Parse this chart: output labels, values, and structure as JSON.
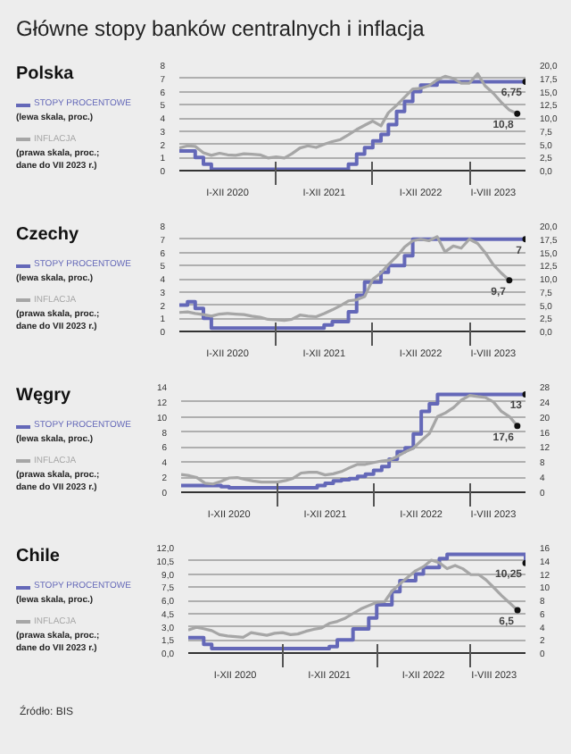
{
  "chart_data": [
    {
      "type": "other",
      "title": "Główne stopy banków centralnych i inflacja"
    },
    {
      "type": "line",
      "title": "Polska",
      "legend": "left",
      "grid": "y",
      "marker": "none",
      "xlim": [
        "2020-01",
        "2023-08"
      ],
      "xticks": [
        {
          "value": "2020-07",
          "label": "I-XII 2020"
        },
        {
          "value": "2021-07",
          "label": "I-XII 2021"
        },
        {
          "value": "2022-07",
          "label": "I-XII 2022"
        },
        {
          "value": "2023-04",
          "label": "I-VIII 2023"
        },
        {
          "value": "2021-01",
          "label": null
        },
        {
          "value": "2022-01",
          "label": null
        },
        {
          "value": "2023-01",
          "label": null
        }
      ],
      "ylim": [
        0,
        8
      ],
      "yticks": [
        0,
        1,
        2,
        3,
        4,
        5,
        6,
        7,
        8
      ],
      "y2lim": [
        0,
        20
      ],
      "y2ticks": [
        {
          "value": 0,
          "label": "0,0"
        },
        {
          "value": 2.5,
          "label": "2,5"
        },
        {
          "value": 5,
          "label": "5,0"
        },
        {
          "value": 7.5,
          "label": "7,5"
        },
        {
          "value": 10,
          "label": "10,0"
        },
        {
          "value": 12.5,
          "label": "12,5"
        },
        {
          "value": 15,
          "label": "15,0"
        },
        {
          "value": 17.5,
          "label": "17,5"
        },
        {
          "value": 20,
          "label": "20,0"
        }
      ],
      "annotations": [
        "(lewa skala, proc.)",
        "(prawa skala, proc.; dane do VII 2023 r.)"
      ],
      "series": [
        {
          "name": "STOPY PROCENTOWE",
          "type": "step",
          "color": "#6468b8",
          "x": [
            "2020-01",
            "2020-03",
            "2020-04",
            "2020-05",
            "2021-10",
            "2021-11",
            "2021-12",
            "2022-01",
            "2022-02",
            "2022-03",
            "2022-04",
            "2022-05",
            "2022-06",
            "2022-07",
            "2022-09",
            "2023-08"
          ],
          "values": [
            1.5,
            1.0,
            0.5,
            0.1,
            0.5,
            1.25,
            1.75,
            2.25,
            2.75,
            3.5,
            4.5,
            5.25,
            6.0,
            6.5,
            6.75,
            6.75
          ],
          "value_labels": [
            null,
            null,
            null,
            null,
            null,
            null,
            null,
            null,
            null,
            null,
            null,
            null,
            null,
            null,
            null,
            "6,75"
          ]
        },
        {
          "name": "INFLACJA",
          "type": "line",
          "axis": "y2",
          "color": "#a6a6a6",
          "x": [
            "2020-01",
            "2020-02",
            "2020-03",
            "2020-04",
            "2020-05",
            "2020-06",
            "2020-07",
            "2020-08",
            "2020-09",
            "2020-10",
            "2020-11",
            "2020-12",
            "2021-01",
            "2021-02",
            "2021-03",
            "2021-04",
            "2021-05",
            "2021-06",
            "2021-07",
            "2021-08",
            "2021-09",
            "2021-10",
            "2021-11",
            "2021-12",
            "2022-01",
            "2022-02",
            "2022-03",
            "2022-04",
            "2022-05",
            "2022-06",
            "2022-07",
            "2022-08",
            "2022-09",
            "2022-10",
            "2022-11",
            "2022-12",
            "2023-01",
            "2023-02",
            "2023-03",
            "2023-04",
            "2023-05",
            "2023-06",
            "2023-07"
          ],
          "values": [
            4.3,
            4.7,
            4.6,
            3.4,
            2.9,
            3.3,
            3.0,
            2.9,
            3.2,
            3.1,
            3.0,
            2.4,
            2.6,
            2.4,
            3.2,
            4.3,
            4.7,
            4.4,
            5.0,
            5.5,
            5.9,
            6.8,
            7.8,
            8.6,
            9.4,
            8.5,
            11.0,
            12.4,
            13.9,
            15.5,
            15.6,
            16.1,
            17.2,
            17.9,
            17.5,
            16.6,
            16.6,
            18.4,
            16.1,
            14.7,
            13.0,
            11.5,
            10.8
          ],
          "value_labels": [
            null,
            null,
            null,
            null,
            null,
            null,
            null,
            null,
            null,
            null,
            null,
            null,
            null,
            null,
            null,
            null,
            null,
            null,
            null,
            null,
            null,
            null,
            null,
            null,
            null,
            null,
            null,
            null,
            null,
            null,
            null,
            null,
            null,
            null,
            null,
            null,
            null,
            null,
            null,
            null,
            null,
            null,
            "10,8"
          ]
        }
      ]
    },
    {
      "type": "line",
      "title": "Czechy",
      "legend": "left",
      "grid": "y",
      "marker": "none",
      "xlim": [
        "2020-01",
        "2023-08"
      ],
      "xticks": [
        {
          "value": "2020-07",
          "label": "I-XII 2020"
        },
        {
          "value": "2021-07",
          "label": "I-XII 2021"
        },
        {
          "value": "2022-07",
          "label": "I-XII 2022"
        },
        {
          "value": "2023-04",
          "label": "I-VIII 2023"
        },
        {
          "value": "2021-01",
          "label": null
        },
        {
          "value": "2022-01",
          "label": null
        },
        {
          "value": "2023-01",
          "label": null
        }
      ],
      "ylim": [
        0,
        8
      ],
      "yticks": [
        0,
        1,
        2,
        3,
        4,
        5,
        6,
        7,
        8
      ],
      "y2lim": [
        0,
        20
      ],
      "y2ticks": [
        {
          "value": 0,
          "label": "0,0"
        },
        {
          "value": 2.5,
          "label": "2,5"
        },
        {
          "value": 5,
          "label": "5,0"
        },
        {
          "value": 7.5,
          "label": "7,5"
        },
        {
          "value": 10,
          "label": "10,0"
        },
        {
          "value": 12.5,
          "label": "12,5"
        },
        {
          "value": 15,
          "label": "15,0"
        },
        {
          "value": 17.5,
          "label": "17,5"
        },
        {
          "value": 20,
          "label": "20,0"
        }
      ],
      "annotations": [
        "(lewa skala, proc.)",
        "(prawa skala, proc.; dane do VII 2023 r.)"
      ],
      "series": [
        {
          "name": "STOPY PROCENTOWE",
          "type": "step",
          "color": "#6468b8",
          "x": [
            "2020-01",
            "2020-02",
            "2020-03",
            "2020-04",
            "2020-05",
            "2021-07",
            "2021-08",
            "2021-10",
            "2021-11",
            "2021-12",
            "2022-02",
            "2022-03",
            "2022-05",
            "2022-06",
            "2023-08"
          ],
          "values": [
            2.0,
            2.25,
            1.75,
            1.0,
            0.25,
            0.5,
            0.75,
            1.5,
            2.75,
            3.75,
            4.5,
            5.0,
            5.75,
            7.0,
            7.0
          ],
          "value_labels": [
            null,
            null,
            null,
            null,
            null,
            null,
            null,
            null,
            null,
            null,
            null,
            null,
            null,
            null,
            "7"
          ]
        },
        {
          "name": "INFLACJA",
          "type": "line",
          "axis": "y2",
          "color": "#a6a6a6",
          "x": [
            "2020-01",
            "2020-02",
            "2020-03",
            "2020-04",
            "2020-05",
            "2020-06",
            "2020-07",
            "2020-08",
            "2020-09",
            "2020-10",
            "2020-11",
            "2020-12",
            "2021-01",
            "2021-02",
            "2021-03",
            "2021-04",
            "2021-05",
            "2021-06",
            "2021-07",
            "2021-08",
            "2021-09",
            "2021-10",
            "2021-11",
            "2021-12",
            "2022-01",
            "2022-02",
            "2022-03",
            "2022-04",
            "2022-05",
            "2022-06",
            "2022-07",
            "2022-08",
            "2022-09",
            "2022-10",
            "2022-11",
            "2022-12",
            "2023-01",
            "2023-02",
            "2023-03",
            "2023-04",
            "2023-05",
            "2023-06"
          ],
          "values": [
            3.6,
            3.7,
            3.4,
            3.2,
            2.9,
            3.3,
            3.4,
            3.3,
            3.2,
            2.9,
            2.7,
            2.3,
            2.2,
            2.1,
            2.3,
            3.1,
            2.9,
            2.8,
            3.4,
            4.1,
            4.9,
            5.8,
            6.0,
            6.6,
            9.9,
            11.1,
            12.7,
            14.2,
            16.0,
            17.2,
            17.5,
            17.2,
            18.0,
            15.1,
            16.2,
            15.8,
            17.5,
            16.7,
            15.0,
            12.7,
            11.1,
            9.7
          ],
          "value_labels": [
            null,
            null,
            null,
            null,
            null,
            null,
            null,
            null,
            null,
            null,
            null,
            null,
            null,
            null,
            null,
            null,
            null,
            null,
            null,
            null,
            null,
            null,
            null,
            null,
            null,
            null,
            null,
            null,
            null,
            null,
            null,
            null,
            null,
            null,
            null,
            null,
            null,
            null,
            null,
            null,
            null,
            "9,7"
          ]
        }
      ]
    },
    {
      "type": "line",
      "title": "Węgry",
      "legend": "left",
      "grid": "y",
      "marker": "none",
      "xlim": [
        "2020-01",
        "2023-08"
      ],
      "xticks": [
        {
          "value": "2020-07",
          "label": "I-XII 2020"
        },
        {
          "value": "2021-07",
          "label": "I-XII 2021"
        },
        {
          "value": "2022-07",
          "label": "I-XII 2022"
        },
        {
          "value": "2023-04",
          "label": "I-VIII 2023"
        },
        {
          "value": "2021-01",
          "label": null
        },
        {
          "value": "2022-01",
          "label": null
        },
        {
          "value": "2023-01",
          "label": null
        }
      ],
      "ylim": [
        0,
        14
      ],
      "yticks": [
        0,
        2,
        4,
        6,
        8,
        10,
        12,
        14
      ],
      "y2lim": [
        0,
        28
      ],
      "y2ticks": [
        0,
        4,
        8,
        12,
        16,
        20,
        24,
        28
      ],
      "annotations": [
        "(lewa skala, proc.)",
        "(prawa skala, proc.; dane do VII 2023 r.)"
      ],
      "series": [
        {
          "name": "STOPY PROCENTOWE",
          "type": "step",
          "color": "#6468b8",
          "x": [
            "2020-01",
            "2020-06",
            "2020-07",
            "2021-06",
            "2021-07",
            "2021-08",
            "2021-09",
            "2021-10",
            "2021-11",
            "2021-12",
            "2022-01",
            "2022-02",
            "2022-03",
            "2022-04",
            "2022-05",
            "2022-06",
            "2022-07",
            "2022-08",
            "2022-09",
            "2023-08"
          ],
          "values": [
            0.9,
            0.75,
            0.6,
            0.9,
            1.2,
            1.5,
            1.65,
            1.8,
            2.1,
            2.4,
            2.9,
            3.4,
            4.4,
            5.4,
            5.9,
            7.75,
            10.75,
            11.75,
            13.0,
            13.0
          ],
          "value_labels": [
            null,
            null,
            null,
            null,
            null,
            null,
            null,
            null,
            null,
            null,
            null,
            null,
            null,
            null,
            null,
            null,
            null,
            null,
            null,
            "13"
          ]
        },
        {
          "name": "INFLACJA",
          "type": "line",
          "axis": "y2",
          "color": "#a6a6a6",
          "x": [
            "2020-01",
            "2020-02",
            "2020-03",
            "2020-04",
            "2020-05",
            "2020-06",
            "2020-07",
            "2020-08",
            "2020-09",
            "2020-10",
            "2020-11",
            "2020-12",
            "2021-01",
            "2021-02",
            "2021-03",
            "2021-04",
            "2021-05",
            "2021-06",
            "2021-07",
            "2021-08",
            "2021-09",
            "2021-10",
            "2021-11",
            "2021-12",
            "2022-01",
            "2022-02",
            "2022-03",
            "2022-04",
            "2022-05",
            "2022-06",
            "2022-07",
            "2022-08",
            "2022-09",
            "2022-10",
            "2022-11",
            "2022-12",
            "2023-01",
            "2023-02",
            "2023-03",
            "2023-04",
            "2023-05",
            "2023-06",
            "2023-07"
          ],
          "values": [
            4.7,
            4.4,
            3.9,
            2.4,
            2.2,
            2.9,
            3.8,
            3.9,
            3.4,
            3.0,
            2.7,
            2.7,
            2.7,
            3.1,
            3.7,
            5.1,
            5.3,
            5.3,
            4.6,
            4.9,
            5.5,
            6.5,
            7.4,
            7.4,
            7.9,
            8.3,
            8.5,
            9.5,
            10.7,
            11.7,
            13.7,
            15.6,
            20.1,
            21.1,
            22.5,
            24.5,
            25.7,
            25.4,
            25.2,
            24.0,
            21.5,
            20.1,
            17.6
          ],
          "value_labels": [
            null,
            null,
            null,
            null,
            null,
            null,
            null,
            null,
            null,
            null,
            null,
            null,
            null,
            null,
            null,
            null,
            null,
            null,
            null,
            null,
            null,
            null,
            null,
            null,
            null,
            null,
            null,
            null,
            null,
            null,
            null,
            null,
            null,
            null,
            null,
            null,
            null,
            null,
            null,
            null,
            null,
            null,
            "17,6"
          ]
        }
      ]
    },
    {
      "type": "line",
      "title": "Chile",
      "legend": "left",
      "grid": "y",
      "marker": "none",
      "xlim": [
        "2020-01",
        "2023-08"
      ],
      "xticks": [
        {
          "value": "2020-07",
          "label": "I-XII 2020"
        },
        {
          "value": "2021-07",
          "label": "I-XII 2021"
        },
        {
          "value": "2022-07",
          "label": "I-XII 2022"
        },
        {
          "value": "2023-04",
          "label": "I-VIII 2023"
        },
        {
          "value": "2021-01",
          "label": null
        },
        {
          "value": "2022-01",
          "label": null
        },
        {
          "value": "2023-01",
          "label": null
        }
      ],
      "ylim": [
        0,
        12
      ],
      "yticks": [
        {
          "value": 0,
          "label": "0,0"
        },
        {
          "value": 1.5,
          "label": "1,5"
        },
        {
          "value": 3,
          "label": "3,0"
        },
        {
          "value": 4.5,
          "label": "4,5"
        },
        {
          "value": 6,
          "label": "6,0"
        },
        {
          "value": 7.5,
          "label": "7,5"
        },
        {
          "value": 9,
          "label": "9,0"
        },
        {
          "value": 10.5,
          "label": "10,5"
        },
        {
          "value": 12,
          "label": "12,0"
        }
      ],
      "y2lim": [
        0,
        16
      ],
      "y2ticks": [
        0,
        2,
        4,
        6,
        8,
        10,
        12,
        14,
        16
      ],
      "annotations": [
        "(lewa skala, proc.)",
        "(prawa skala, proc.; dane do VII 2023 r.)",
        "Źródło: BIS"
      ],
      "series": [
        {
          "name": "STOPY PROCENTOWE",
          "type": "step",
          "color": "#6468b8",
          "x": [
            "2020-01",
            "2020-03",
            "2020-04",
            "2021-07",
            "2021-08",
            "2021-10",
            "2021-12",
            "2022-01",
            "2022-03",
            "2022-04",
            "2022-06",
            "2022-07",
            "2022-09",
            "2022-10",
            "2023-08"
          ],
          "values": [
            1.75,
            1.0,
            0.5,
            0.75,
            1.5,
            2.75,
            4.0,
            5.5,
            7.0,
            8.25,
            9.0,
            9.75,
            10.75,
            11.25,
            10.25
          ],
          "value_labels": [
            null,
            null,
            null,
            null,
            null,
            null,
            null,
            null,
            null,
            null,
            null,
            null,
            null,
            null,
            "10,25"
          ]
        },
        {
          "name": "INFLACJA",
          "type": "line",
          "axis": "y2",
          "color": "#a6a6a6",
          "x": [
            "2020-01",
            "2020-02",
            "2020-03",
            "2020-04",
            "2020-05",
            "2020-06",
            "2020-07",
            "2020-08",
            "2020-09",
            "2020-10",
            "2020-11",
            "2020-12",
            "2021-01",
            "2021-02",
            "2021-03",
            "2021-04",
            "2021-05",
            "2021-06",
            "2021-07",
            "2021-08",
            "2021-09",
            "2021-10",
            "2021-11",
            "2021-12",
            "2022-01",
            "2022-02",
            "2022-03",
            "2022-04",
            "2022-05",
            "2022-06",
            "2022-07",
            "2022-08",
            "2022-09",
            "2022-10",
            "2022-11",
            "2022-12",
            "2023-01",
            "2023-02",
            "2023-03",
            "2023-04",
            "2023-05",
            "2023-06",
            "2023-07"
          ],
          "values": [
            3.5,
            3.9,
            3.7,
            3.4,
            2.8,
            2.6,
            2.5,
            2.4,
            3.1,
            2.9,
            2.7,
            3.0,
            3.1,
            2.8,
            2.9,
            3.3,
            3.6,
            3.8,
            4.5,
            4.8,
            5.3,
            6.0,
            6.7,
            7.2,
            7.7,
            7.8,
            9.4,
            10.5,
            11.5,
            12.5,
            13.1,
            14.1,
            13.7,
            12.8,
            13.3,
            12.8,
            11.9,
            11.9,
            11.1,
            9.9,
            8.7,
            7.6,
            6.5
          ],
          "value_labels": [
            null,
            null,
            null,
            null,
            null,
            null,
            null,
            null,
            null,
            null,
            null,
            null,
            null,
            null,
            null,
            null,
            null,
            null,
            null,
            null,
            null,
            null,
            null,
            null,
            null,
            null,
            null,
            null,
            null,
            null,
            null,
            null,
            null,
            null,
            null,
            null,
            null,
            null,
            null,
            null,
            null,
            null,
            "6,5"
          ]
        }
      ]
    }
  ]
}
